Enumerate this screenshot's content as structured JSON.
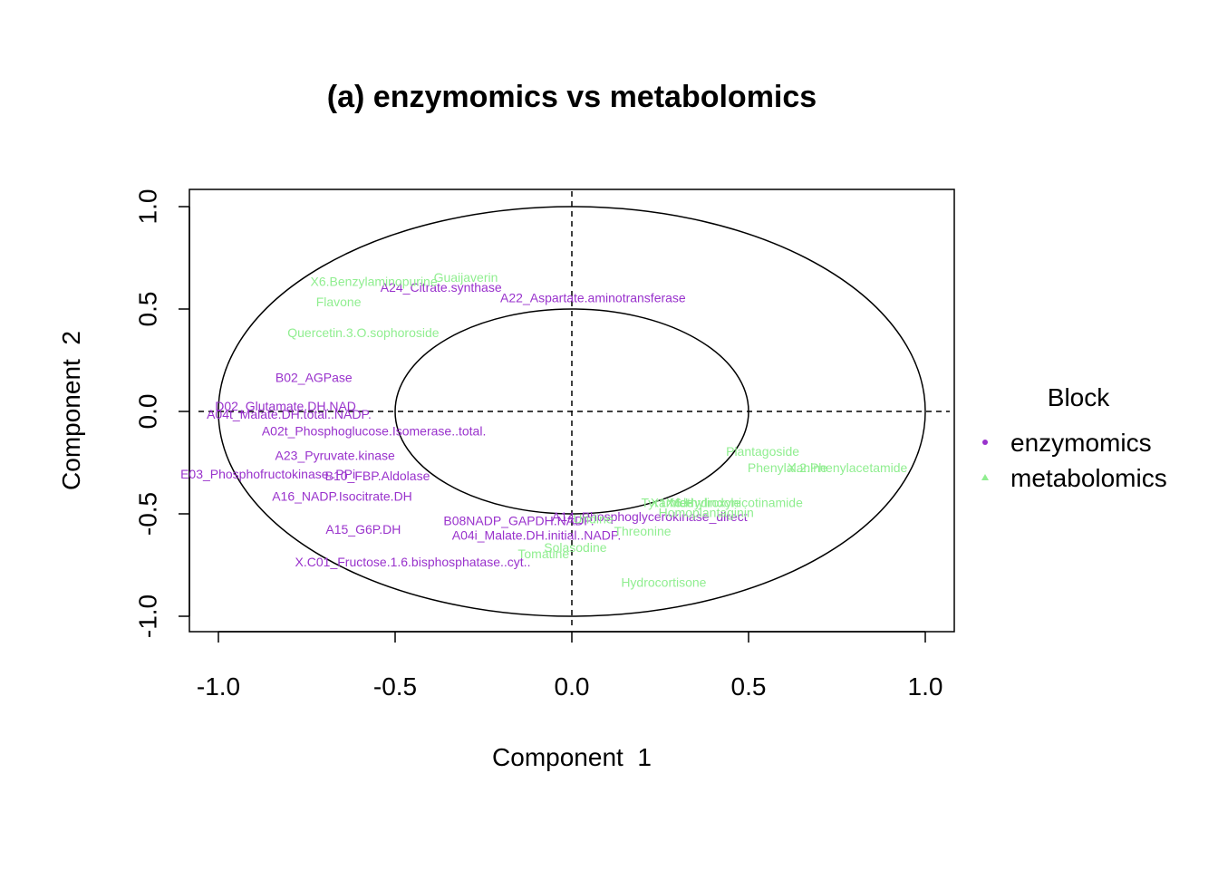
{
  "chart_data": {
    "type": "scatter",
    "title": "(a) enzymomics vs metabolomics",
    "xlabel": "Component  1",
    "ylabel": "Component  2",
    "xlim": [
      -1.0,
      1.0
    ],
    "ylim": [
      -1.0,
      1.0
    ],
    "xticks": [
      -1.0,
      -0.5,
      0.0,
      0.5,
      1.0
    ],
    "yticks": [
      -1.0,
      -0.5,
      0.0,
      0.5,
      1.0
    ],
    "tick_labels": [
      "-1.0",
      "-0.5",
      "0.0",
      "0.5",
      "1.0"
    ],
    "circles": [
      1.0,
      0.5
    ],
    "legend": {
      "title": "Block",
      "placement": "right",
      "entries": [
        {
          "label": "enzymomics",
          "color": "#9932CC",
          "shape": "circle"
        },
        {
          "label": "metabolomics",
          "color": "#90EE90",
          "shape": "triangle"
        }
      ]
    },
    "series": [
      {
        "name": "enzymomics",
        "color": "#9932CC",
        "points": [
          {
            "label": "A24_Citrate.synthase",
            "x": -0.37,
            "y": 0.6
          },
          {
            "label": "A22_Aspartate.aminotransferase",
            "x": 0.06,
            "y": 0.55
          },
          {
            "label": "B02_AGPase",
            "x": -0.73,
            "y": 0.16
          },
          {
            "label": "D02_Glutamate.DH.NAD",
            "x": -0.81,
            "y": 0.02
          },
          {
            "label": "A04t_Malate.DH.total..NADP.",
            "x": -0.8,
            "y": -0.02
          },
          {
            "label": "A02t_Phosphoglucose.Isomerase..total.",
            "x": -0.56,
            "y": -0.1
          },
          {
            "label": "A23_Pyruvate.kinase",
            "x": -0.67,
            "y": -0.22
          },
          {
            "label": "E03_Phosphofructokinase..PPi",
            "x": -0.86,
            "y": -0.31
          },
          {
            "label": "B10_FBP.Aldolase",
            "x": -0.55,
            "y": -0.32
          },
          {
            "label": "A16_NADP.Isocitrate.DH",
            "x": -0.65,
            "y": -0.42
          },
          {
            "label": "A15_G6P.DH",
            "x": -0.59,
            "y": -0.58
          },
          {
            "label": "B08NADP_GAPDH.NADP.",
            "x": -0.15,
            "y": -0.54
          },
          {
            "label": "A04i_Malate.DH.initial..NADP.",
            "x": -0.1,
            "y": -0.61
          },
          {
            "label": "A14_Phosphoglycerokinase_direct",
            "x": 0.22,
            "y": -0.52
          },
          {
            "label": "X.C01_Fructose.1.6.bisphosphatase..cyt..",
            "x": -0.45,
            "y": -0.74
          }
        ]
      },
      {
        "name": "metabolomics",
        "color": "#90EE90",
        "points": [
          {
            "label": "X6.Benzylaminopurine",
            "x": -0.56,
            "y": 0.63
          },
          {
            "label": "Guaijaverin",
            "x": -0.3,
            "y": 0.65
          },
          {
            "label": "Flavone",
            "x": -0.66,
            "y": 0.53
          },
          {
            "label": "Quercetin.3.O.sophoroside",
            "x": -0.59,
            "y": 0.38
          },
          {
            "label": "Plantagoside",
            "x": 0.54,
            "y": -0.2
          },
          {
            "label": "Phenylalanine",
            "x": 0.61,
            "y": -0.28
          },
          {
            "label": "X.2.Phenylacetamide",
            "x": 0.78,
            "y": -0.28
          },
          {
            "label": "X6.Hydroxynicotinamide",
            "x": 0.46,
            "y": -0.45
          },
          {
            "label": "Homoplantaginin",
            "x": 0.38,
            "y": -0.5
          },
          {
            "label": "X1.Methylindole",
            "x": 0.35,
            "y": -0.45
          },
          {
            "label": "Tyramide",
            "x": 0.27,
            "y": -0.45
          },
          {
            "label": "Threonine",
            "x": 0.2,
            "y": -0.59
          },
          {
            "label": "Solasodine",
            "x": 0.01,
            "y": -0.67
          },
          {
            "label": "Tomatine",
            "x": -0.08,
            "y": -0.7
          },
          {
            "label": "Hydrocortisone",
            "x": 0.26,
            "y": -0.84
          },
          {
            "label": "Uridine",
            "x": 0.06,
            "y": -0.53
          }
        ]
      }
    ]
  }
}
